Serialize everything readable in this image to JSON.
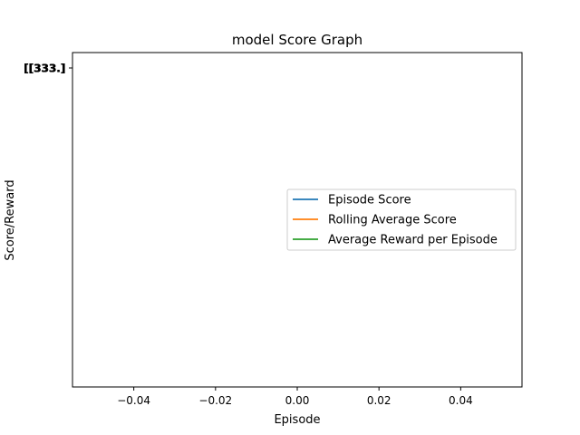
{
  "chart_data": {
    "type": "line",
    "title": "model Score Graph",
    "xlabel": "Episode",
    "ylabel": "Score/Reward",
    "xlim": [
      -0.055,
      0.055
    ],
    "xticks": [
      -0.04,
      -0.02,
      0.0,
      0.02,
      0.04
    ],
    "xtick_labels": [
      "−0.04",
      "−0.02",
      "0.00",
      "0.02",
      "0.04"
    ],
    "ytick_overlap_labels": [
      "[[333.]",
      "[[333.]",
      "[[333.]"
    ],
    "grid": false,
    "legend_position": "center-right",
    "series": [
      {
        "name": "Episode Score",
        "color": "#1f77b4",
        "x": [
          0
        ],
        "y": [
          333
        ]
      },
      {
        "name": "Rolling Average Score",
        "color": "#ff7f0e",
        "x": [
          0
        ],
        "y": [
          333
        ]
      },
      {
        "name": "Average Reward per Episode",
        "color": "#2ca02c",
        "x": [
          0
        ],
        "y": [
          333
        ]
      }
    ]
  }
}
